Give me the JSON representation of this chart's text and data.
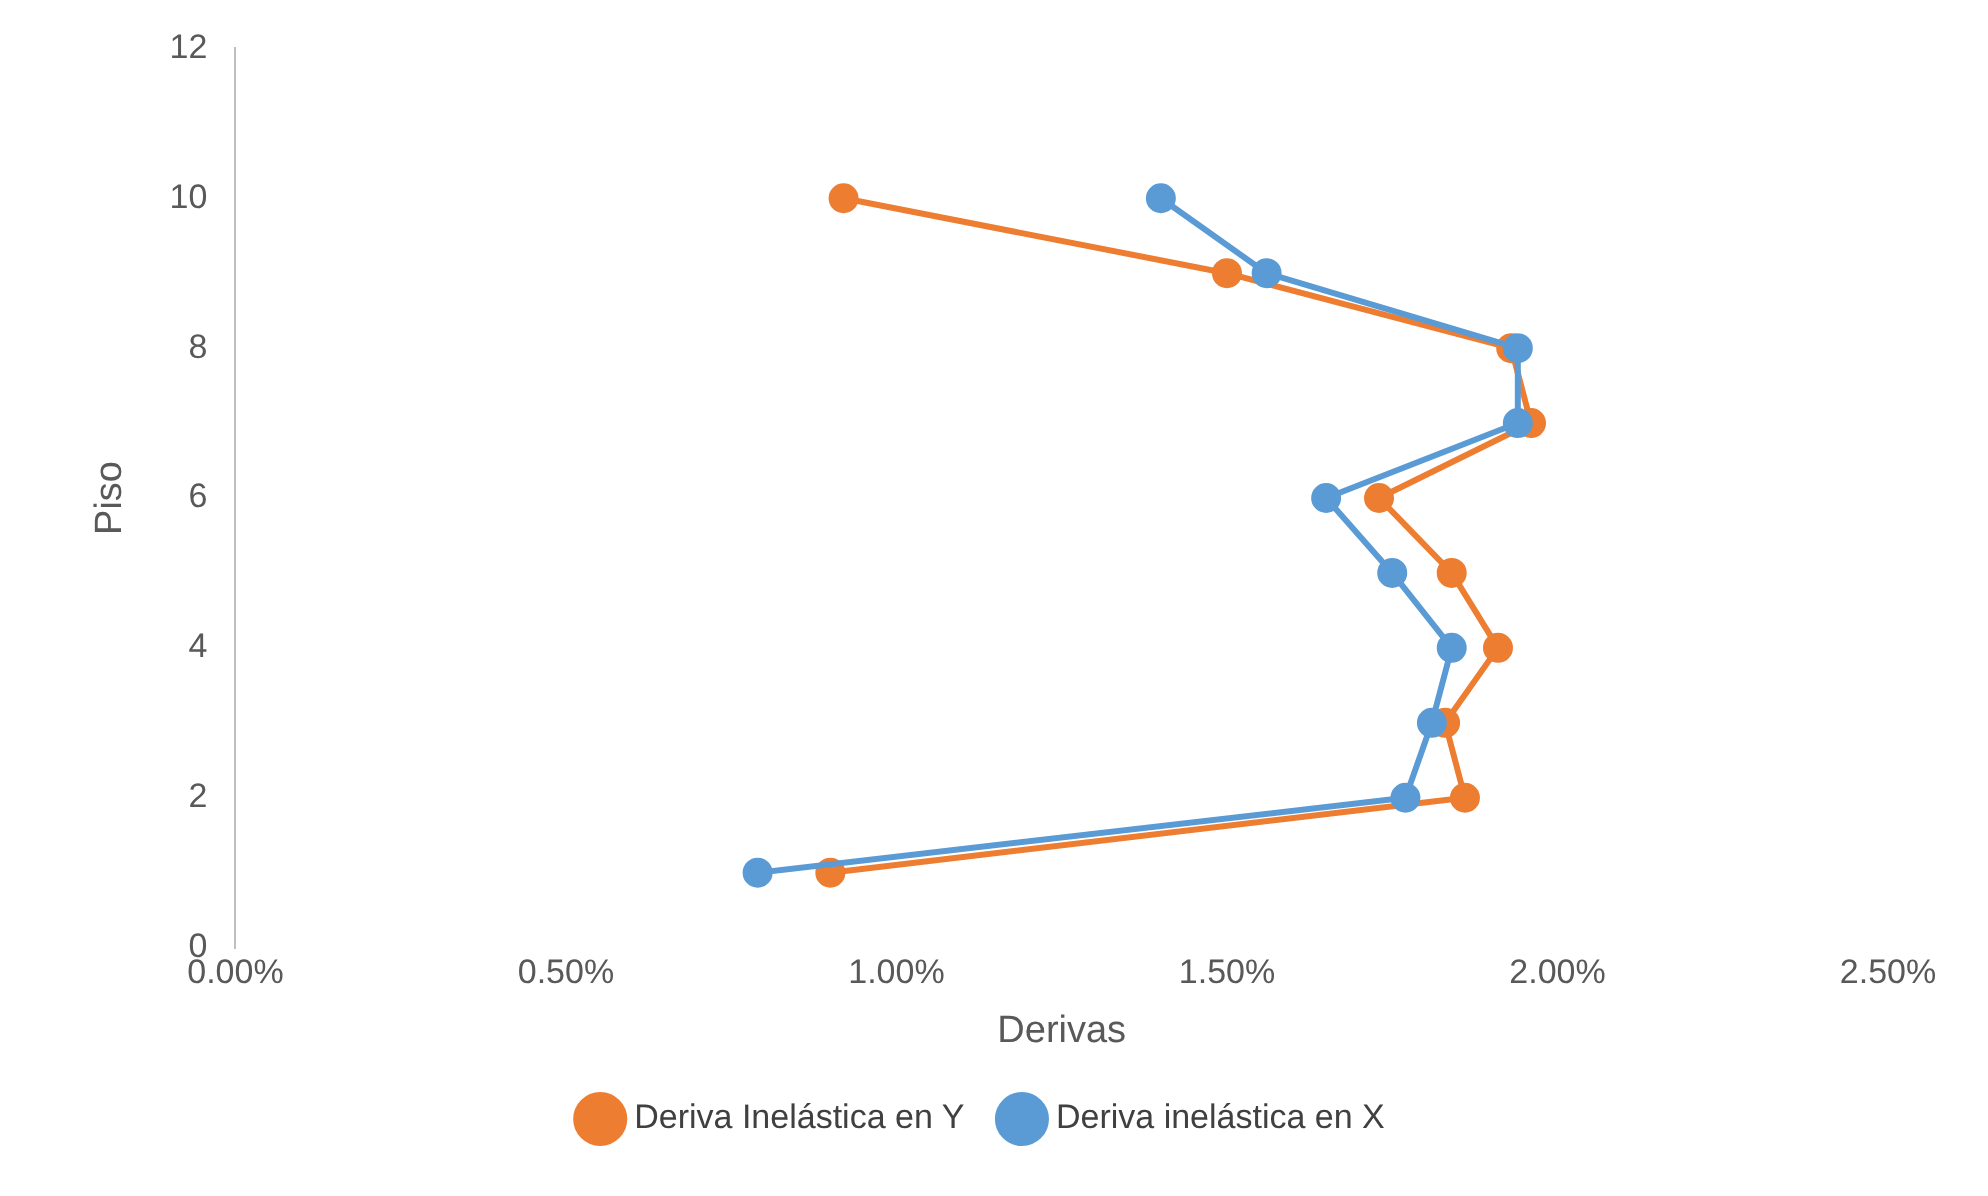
{
  "chart_data": {
    "type": "line",
    "xlabel": "Derivas",
    "ylabel": "Piso",
    "series": [
      {
        "name": "Deriva Inelástica en Y",
        "color": "#ed7d31",
        "x": [
          0.0092,
          0.015,
          0.0193,
          0.0196,
          0.0173,
          0.0184,
          0.0191,
          0.0183,
          0.0186,
          0.009
        ],
        "values": [
          10,
          9,
          8,
          7,
          6,
          5,
          4,
          3,
          2,
          1
        ]
      },
      {
        "name": "Deriva inelástica en X",
        "color": "#5b9bd5",
        "x": [
          0.014,
          0.0156,
          0.0194,
          0.0194,
          0.0165,
          0.0175,
          0.0184,
          0.0181,
          0.0177,
          0.0079
        ],
        "values": [
          10,
          9,
          8,
          7,
          6,
          5,
          4,
          3,
          2,
          1
        ]
      }
    ],
    "xlim": [
      0,
      0.025
    ],
    "xticks": [
      {
        "value": 0,
        "label": "0.00%"
      },
      {
        "value": 0.005,
        "label": "0.50%"
      },
      {
        "value": 0.01,
        "label": "1.00%"
      },
      {
        "value": 0.015,
        "label": "1.50%"
      },
      {
        "value": 0.02,
        "label": "2.00%"
      },
      {
        "value": 0.025,
        "label": "2.50%"
      }
    ],
    "ylim": [
      0,
      12
    ],
    "yticks": [
      0,
      2,
      4,
      6,
      8,
      10,
      12
    ],
    "grid": false,
    "legend": "bottom",
    "marker": "circle",
    "line_style": "solid"
  }
}
